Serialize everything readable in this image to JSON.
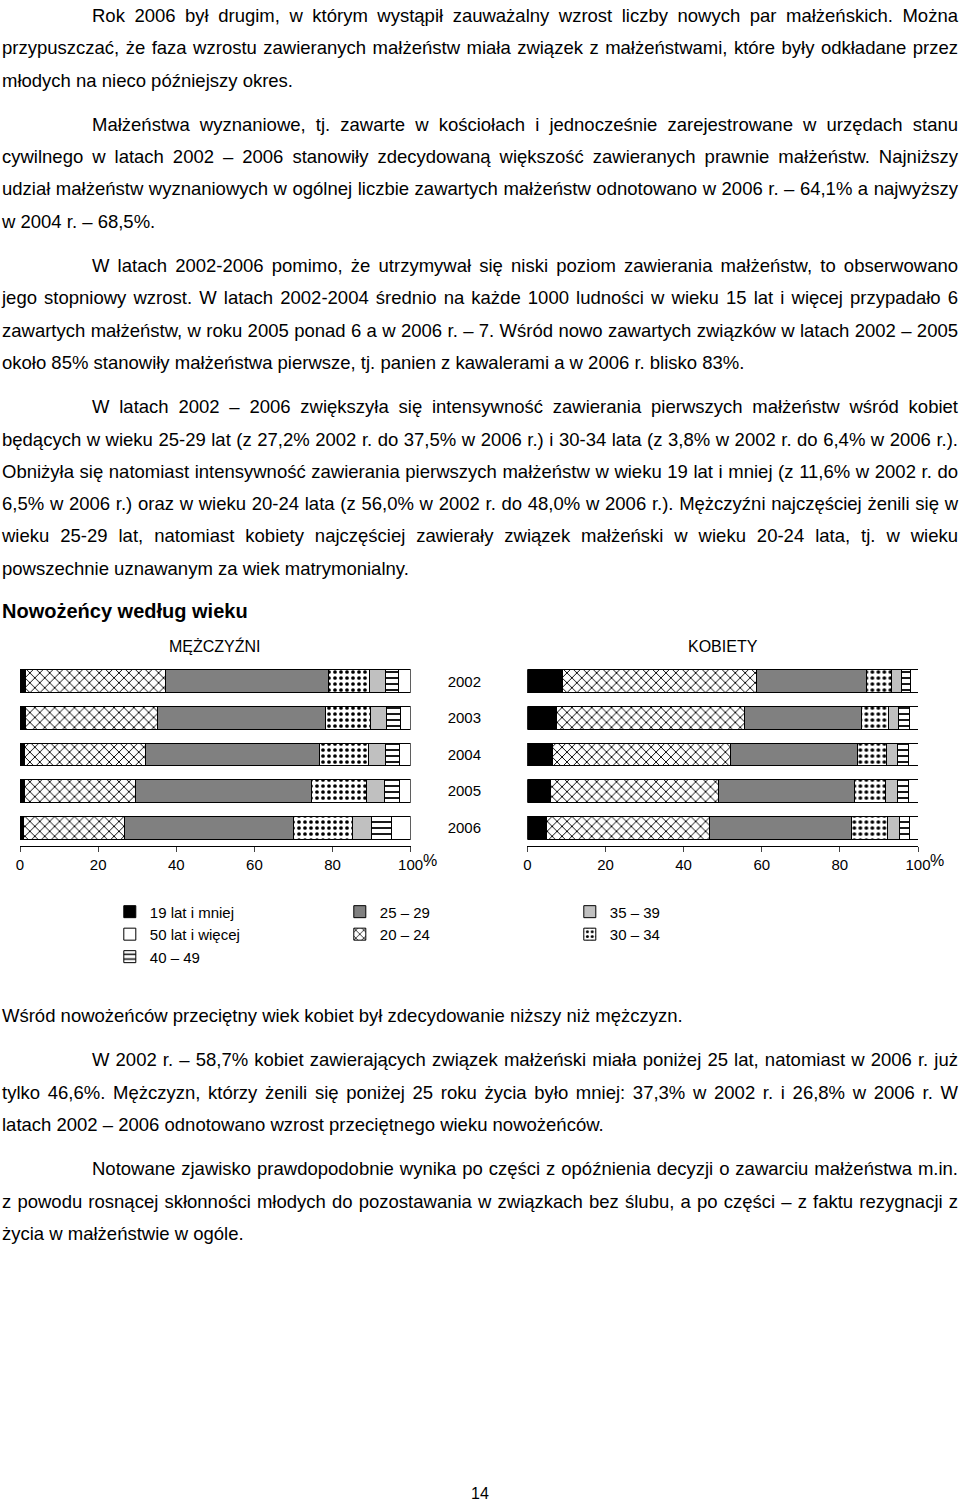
{
  "document": {
    "paragraphs_before": [
      "Rok 2006 był drugim, w którym wystąpił zauważalny wzrost liczby nowych par małżeńskich. Można przypuszczać, że faza wzrostu zawieranych małżeństw miała związek z małżeństwami, które były odkładane przez młodych na nieco późniejszy okres.",
      "Małżeństwa wyznaniowe, tj. zawarte w kościołach i jednocześnie zarejestrowane w urzędach stanu cywilnego w latach 2002 – 2006 stanowiły zdecydowaną większość zawieranych prawnie małżeństw. Najniższy udział małżeństw wyznaniowych w ogólnej liczbie zawartych małżeństw odnotowano w 2006 r. – 64,1% a najwyższy w 2004 r. – 68,5%.",
      "W latach 2002-2006 pomimo, że utrzymywał się niski poziom zawierania małżeństw, to obserwowano jego stopniowy wzrost. W latach 2002-2004 średnio na każde 1000 ludności w wieku 15 lat i więcej przypadało 6 zawartych małżeństw, w roku 2005 ponad 6 a w 2006 r. – 7. Wśród nowo zawartych związków w latach 2002 – 2005 około 85% stanowiły małżeństwa pierwsze, tj. panien z kawalerami a w 2006 r. blisko 83%.",
      "W latach 2002 – 2006 zwiększyła się intensywność zawierania pierwszych małżeństw wśród kobiet będących w wieku 25-29 lat (z 27,2% 2002 r. do 37,5% w 2006 r.) i 30-34 lata (z 3,8% w 2002 r. do 6,4% w 2006 r.). Obniżyła się natomiast intensywność zawierania pierwszych małżeństw w wieku 19 lat i mniej (z 11,6% w 2002 r. do 6,5% w 2006 r.) oraz w wieku 20-24 lata (z 56,0% w 2002 r. do 48,0% w 2006 r.). Mężczyźni najczęściej żenili się w wieku 25-29 lat, natomiast kobiety najczęściej zawierały związek małżeński w wieku 20-24 lata, tj. w wieku powszechnie uznawanym za wiek matrymonialny."
    ],
    "chart_heading": "Nowożeńcy według wieku",
    "chart_note": "Wśród nowożeńców przeciętny wiek kobiet był zdecydowanie niższy niż mężczyzn.",
    "paragraphs_after": [
      "W 2002 r. – 58,7% kobiet zawierających związek małżeński miała poniżej 25 lat, natomiast w 2006 r. już tylko 46,6%. Mężczyzn, którzy żenili się poniżej 25 roku życia było mniej: 37,3% w 2002 r. i 26,8% w 2006 r. W latach 2002 – 2006 odnotowano wzrost przeciętnego wieku nowożeńców.",
      "Notowane zjawisko prawdopodobnie wynika po części z opóźnienia decyzji o zawarciu małżeństwa m.in. z powodu rosnącej skłonności młodych do pozostawania w związkach bez ślubu, a po części – z faktu rezygnacji z życia w małżeństwie w ogóle."
    ],
    "page_number": "14"
  },
  "chart_data": [
    {
      "type": "bar",
      "orientation": "horizontal",
      "stacked": true,
      "grid": false,
      "legend": "bottom",
      "title": "MĘŻCZYŹNI",
      "xlabel": "%",
      "categories": [
        "2002",
        "2003",
        "2004",
        "2005",
        "2006"
      ],
      "xlim": [
        0,
        100
      ],
      "xticks": [
        0,
        20,
        40,
        60,
        80,
        100
      ],
      "series": [
        {
          "name": "19 lat i mniej",
          "color": "#000000",
          "marker": "solid",
          "values": [
            1.5,
            1.3,
            1.2,
            1.1,
            1.0
          ]
        },
        {
          "name": "20 – 24",
          "color": "#ffffff",
          "marker": "crosshatch",
          "values": [
            35.8,
            34.0,
            31.0,
            28.5,
            25.8
          ]
        },
        {
          "name": "25 – 29",
          "color": "#808080",
          "marker": "solid",
          "values": [
            41.7,
            43.0,
            44.5,
            45.0,
            43.2
          ]
        },
        {
          "name": "30 – 34",
          "color": "#ffffff",
          "marker": "dots",
          "values": [
            10.5,
            11.5,
            12.5,
            14.0,
            15.0
          ]
        },
        {
          "name": "35 – 39",
          "color": "#c0c0c0",
          "marker": "solid",
          "values": [
            4.0,
            4.0,
            4.3,
            4.6,
            5.0
          ]
        },
        {
          "name": "40 – 49",
          "color": "#ffffff",
          "marker": "horizontal_lines",
          "values": [
            3.5,
            3.5,
            3.7,
            3.9,
            5.0
          ]
        },
        {
          "name": "50 lat i więcej",
          "color": "#ffffff",
          "marker": "solid",
          "values": [
            3.0,
            2.7,
            2.8,
            2.9,
            5.0
          ]
        }
      ]
    },
    {
      "type": "bar",
      "orientation": "horizontal",
      "stacked": true,
      "grid": false,
      "title": "KOBIETY",
      "xlabel": "%",
      "categories": [
        "2002",
        "2003",
        "2004",
        "2005",
        "2006"
      ],
      "xlim": [
        0,
        100
      ],
      "xticks": [
        0,
        20,
        40,
        60,
        80,
        100
      ],
      "series": [
        {
          "name": "19 lat i mniej",
          "color": "#000000",
          "marker": "solid",
          "values": [
            9.0,
            7.5,
            6.5,
            5.8,
            5.0
          ]
        },
        {
          "name": "20 – 24",
          "color": "#ffffff",
          "marker": "crosshatch",
          "values": [
            49.7,
            48.0,
            45.5,
            43.0,
            41.6
          ]
        },
        {
          "name": "25 – 29",
          "color": "#808080",
          "marker": "solid",
          "values": [
            28.0,
            30.0,
            32.5,
            35.0,
            36.5
          ]
        },
        {
          "name": "30 – 34",
          "color": "#ffffff",
          "marker": "dots",
          "values": [
            6.5,
            7.0,
            7.5,
            8.0,
            9.0
          ]
        },
        {
          "name": "35 – 39",
          "color": "#c0c0c0",
          "marker": "solid",
          "values": [
            2.5,
            2.6,
            2.8,
            3.0,
            3.2
          ]
        },
        {
          "name": "40 – 49",
          "color": "#ffffff",
          "marker": "horizontal_lines",
          "values": [
            2.3,
            2.6,
            2.8,
            2.8,
            2.5
          ]
        },
        {
          "name": "50 lat i więcej",
          "color": "#ffffff",
          "marker": "solid",
          "values": [
            2.0,
            2.3,
            2.4,
            2.4,
            2.2
          ]
        }
      ]
    }
  ]
}
